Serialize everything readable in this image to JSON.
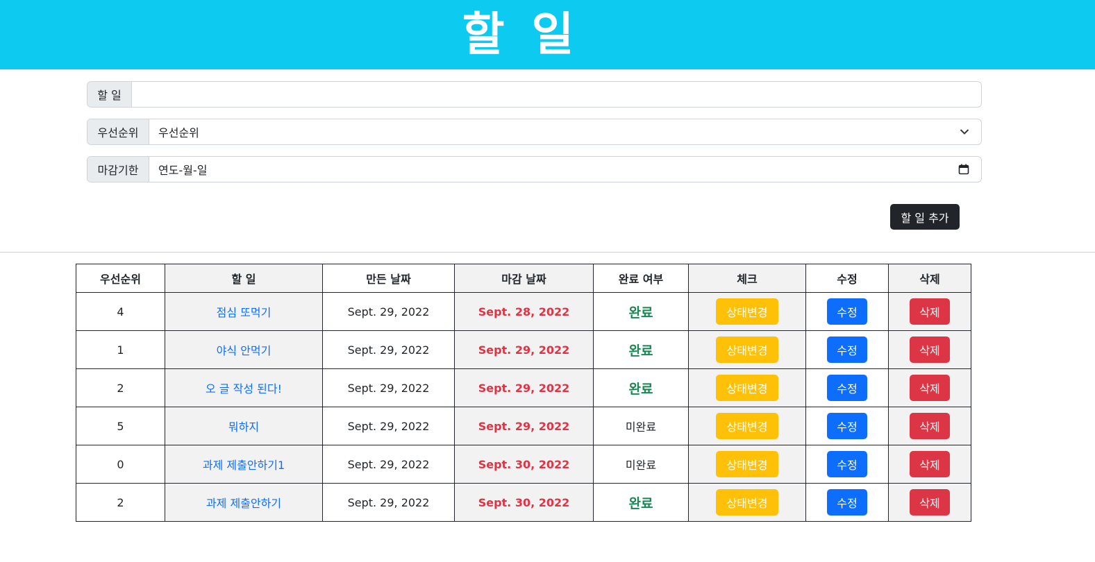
{
  "header": {
    "title": "할 일"
  },
  "form": {
    "task": {
      "label": "할 일",
      "value": ""
    },
    "priority": {
      "label": "우선순위",
      "selected": "우선순위"
    },
    "deadline": {
      "label": "마감기한",
      "value": "연도-월-일"
    },
    "add_label": "할 일 추가"
  },
  "table": {
    "headers": [
      "우선순위",
      "할 일",
      "만든 날짜",
      "마감 날짜",
      "완료 여부",
      "체크",
      "수정",
      "삭제"
    ],
    "action_labels": {
      "check": "상태변경",
      "edit": "수정",
      "delete": "삭제"
    },
    "rows": [
      {
        "priority": "4",
        "task": "점심 또먹기",
        "created": "Sept. 29, 2022",
        "due": "Sept. 28, 2022",
        "status": "완료"
      },
      {
        "priority": "1",
        "task": "야식 안먹기",
        "created": "Sept. 29, 2022",
        "due": "Sept. 29, 2022",
        "status": "완료"
      },
      {
        "priority": "2",
        "task": "오 글 작성 된다!",
        "created": "Sept. 29, 2022",
        "due": "Sept. 29, 2022",
        "status": "완료"
      },
      {
        "priority": "5",
        "task": "뭐하지",
        "created": "Sept. 29, 2022",
        "due": "Sept. 29, 2022",
        "status": "미완료"
      },
      {
        "priority": "0",
        "task": "과제 제출안하기1",
        "created": "Sept. 29, 2022",
        "due": "Sept. 30, 2022",
        "status": "미완료"
      },
      {
        "priority": "2",
        "task": "과제 제출안하기",
        "created": "Sept. 29, 2022",
        "due": "Sept. 30, 2022",
        "status": "완료"
      }
    ]
  },
  "colors": {
    "header_bg": "#0dcaf0",
    "complete": "#198754",
    "due": "#dc3545",
    "link": "#0d6efd",
    "check_button": "#ffc107",
    "edit_button": "#0d6efd",
    "delete_button": "#dc3545"
  },
  "icons": {
    "select_caret": "chevron-down-icon",
    "date_picker": "calendar-icon"
  }
}
